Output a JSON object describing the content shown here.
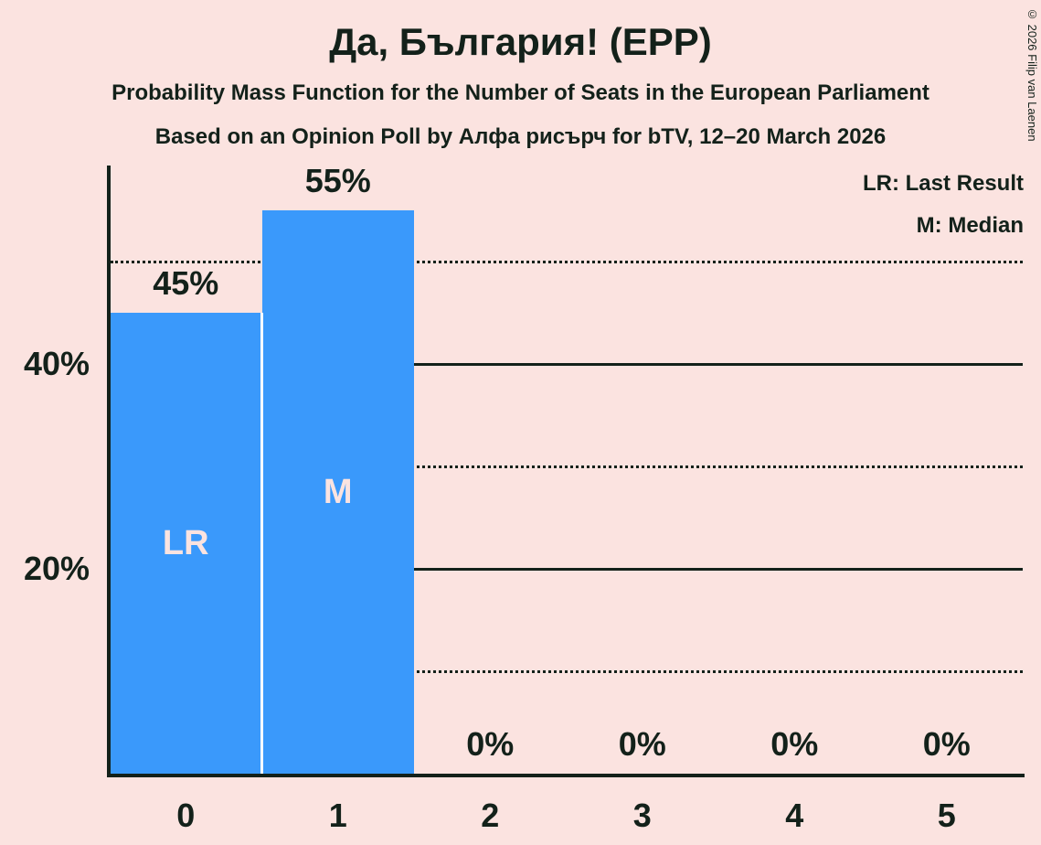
{
  "header": {
    "subtitle1": "Probability Mass Function for the Number of Seats in the European Parliament",
    "subtitle2": "Based on an Opinion Poll by Алфа рисърч for bTV, 12–20 March 2026"
  },
  "legend": {
    "last_result": "LR: Last Result",
    "median": "M: Median"
  },
  "copyright": "© 2026 Filip van Laenen",
  "colors": {
    "background": "#fbe3e0",
    "bar": "#3a99fb",
    "text": "#13211a",
    "bar_label": "#fbe3e0",
    "divider": "#ffffff"
  },
  "chart_data": {
    "type": "bar",
    "title": "Да, България! (EPP)",
    "categories": [
      "0",
      "1",
      "2",
      "3",
      "4",
      "5"
    ],
    "values": [
      45,
      55,
      0,
      0,
      0,
      0
    ],
    "value_labels": [
      "45%",
      "55%",
      "0%",
      "0%",
      "0%",
      "0%"
    ],
    "bar_annotations": [
      {
        "index": 0,
        "label": "LR"
      },
      {
        "index": 1,
        "label": "M"
      }
    ],
    "xlabel": "",
    "ylabel": "",
    "ylim": [
      0,
      60
    ],
    "yticks": [
      {
        "value": 20,
        "label": "20%"
      },
      {
        "value": 40,
        "label": "40%"
      }
    ],
    "gridlines": [
      {
        "value": 10,
        "style": "dotted"
      },
      {
        "value": 20,
        "style": "solid"
      },
      {
        "value": 30,
        "style": "dotted"
      },
      {
        "value": 40,
        "style": "solid"
      },
      {
        "value": 50,
        "style": "dotted"
      }
    ],
    "grid": true,
    "legend_position": "top-right"
  }
}
